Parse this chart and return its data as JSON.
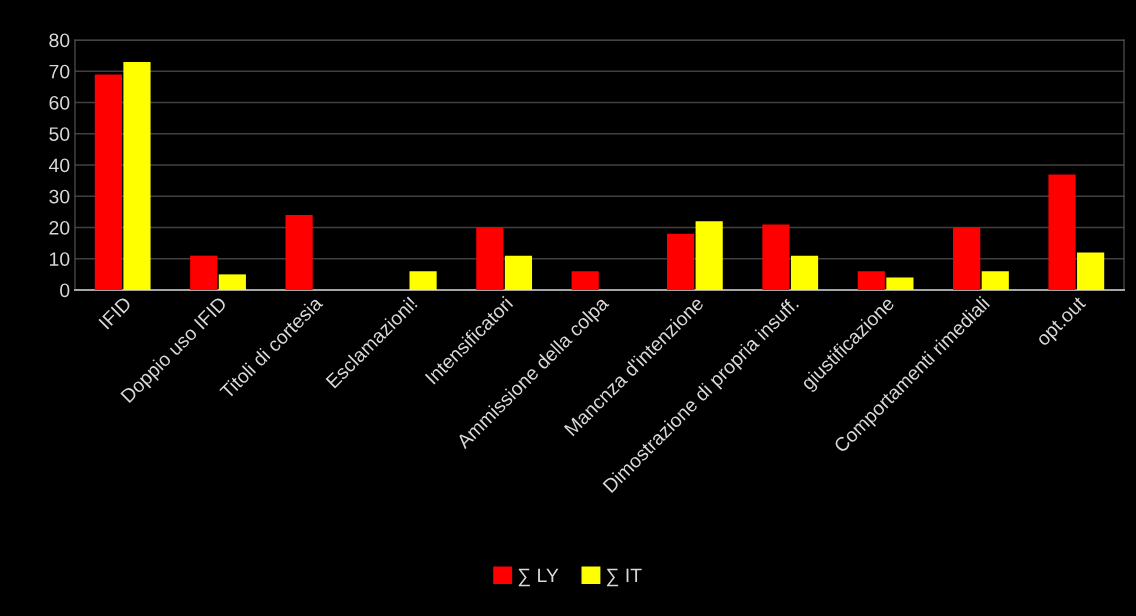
{
  "chart_data": {
    "type": "bar",
    "categories": [
      "IFID",
      "Doppio uso IFID",
      "Titoli di cortesia",
      "Esclamazioni!",
      "Intensificatori",
      "Ammissione della colpa",
      "Mancnza d'intenzione",
      "Dimostrazione di propria insuff.",
      "giustificazione",
      "Comportamenti rimediali",
      "opt.out"
    ],
    "series": [
      {
        "name": "∑ LY",
        "color": "#ff0000",
        "values": [
          69,
          11,
          24,
          0,
          20,
          6,
          18,
          21,
          6,
          20,
          37
        ]
      },
      {
        "name": "∑ IT",
        "color": "#ffff00",
        "values": [
          73,
          5,
          0,
          6,
          11,
          0,
          22,
          11,
          4,
          6,
          12
        ]
      }
    ],
    "ylim": [
      0,
      80
    ],
    "yticks": [
      0,
      10,
      20,
      30,
      40,
      50,
      60,
      70,
      80
    ],
    "grid": "y",
    "legend": "bottom"
  }
}
